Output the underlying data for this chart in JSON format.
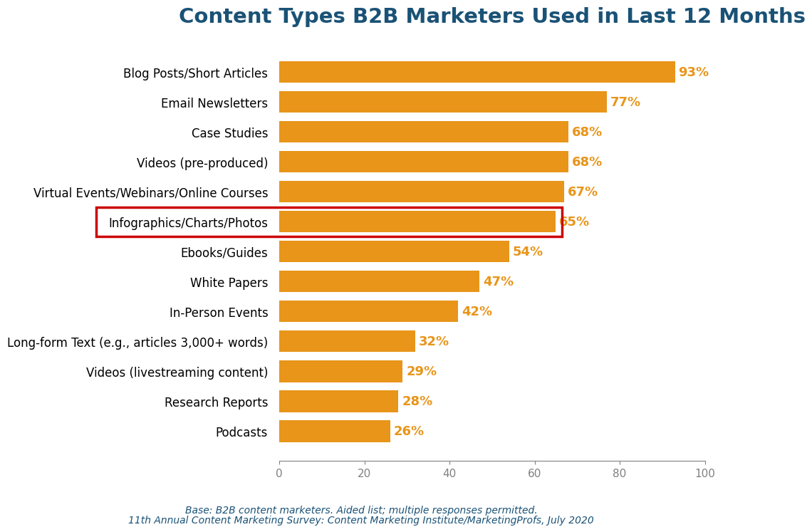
{
  "title": "Content Types B2B Marketers Used in Last 12 Months",
  "title_color": "#1a5276",
  "title_fontsize": 21,
  "categories": [
    "Blog Posts/Short Articles",
    "Email Newsletters",
    "Case Studies",
    "Videos (pre-produced)",
    "Virtual Events/Webinars/Online Courses",
    "Infographics/Charts/Photos",
    "Ebooks/Guides",
    "White Papers",
    "In-Person Events",
    "Long-form Text (e.g., articles 3,000+ words)",
    "Videos (livestreaming content)",
    "Research Reports",
    "Podcasts"
  ],
  "values": [
    93,
    77,
    68,
    68,
    67,
    65,
    54,
    47,
    42,
    32,
    29,
    28,
    26
  ],
  "bar_color": "#E8951A",
  "highlight_index": 5,
  "highlight_edgecolor": "#CC0000",
  "highlight_linewidth": 2.5,
  "xlim": [
    0,
    100
  ],
  "xticks": [
    0,
    20,
    40,
    60,
    80,
    100
  ],
  "value_color": "#E8951A",
  "value_fontsize": 13,
  "label_fontsize": 12,
  "footnote_line1": "Base: B2B content marketers. Aided list; multiple responses permitted.",
  "footnote_line2": "11th Annual Content Marketing Survey: Content Marketing Institute/MarketingProfs, July 2020",
  "footnote_color": "#1a5276",
  "footnote_fontsize": 10,
  "background_color": "#ffffff"
}
